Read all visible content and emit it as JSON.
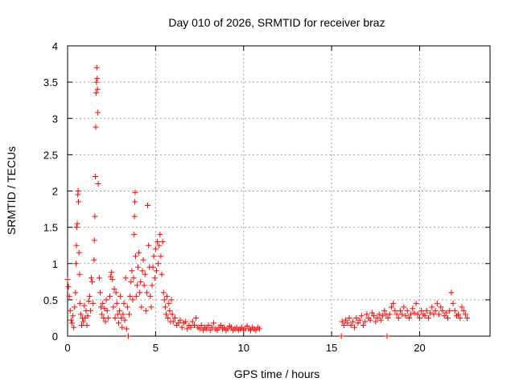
{
  "chart_data": {
    "type": "scatter",
    "title": "Day 010 of 2026, SRMTID for receiver braz",
    "xlabel": "GPS time / hours",
    "ylabel": "SRMTID / TECUs",
    "xlim": [
      0,
      24
    ],
    "ylim": [
      0,
      4
    ],
    "x_ticks": [
      0,
      5,
      10,
      15,
      20
    ],
    "x_tick_labels": [
      "0",
      "5",
      "10",
      "15",
      "20"
    ],
    "y_ticks": [
      0,
      0.5,
      1,
      1.5,
      2,
      2.5,
      3,
      3.5,
      4
    ],
    "y_tick_labels": [
      "0",
      "0.5",
      "1",
      "1.5",
      "2",
      "2.5",
      "3",
      "3.5",
      "4"
    ],
    "grid": true,
    "marker": "+",
    "series": [
      {
        "name": "SRMTID",
        "color": "#ff0000",
        "points": [
          [
            0.0,
            0.78
          ],
          [
            0.05,
            0.68
          ],
          [
            0.1,
            0.55
          ],
          [
            0.15,
            0.35
          ],
          [
            0.2,
            0.22
          ],
          [
            0.25,
            0.18
          ],
          [
            0.3,
            0.28
          ],
          [
            0.35,
            0.12
          ],
          [
            0.4,
            0.4
          ],
          [
            0.45,
            0.6
          ],
          [
            0.48,
            1.0
          ],
          [
            0.5,
            1.25
          ],
          [
            0.52,
            1.5
          ],
          [
            0.55,
            1.55
          ],
          [
            0.58,
            1.95
          ],
          [
            0.6,
            2.0
          ],
          [
            0.62,
            1.85
          ],
          [
            0.65,
            1.15
          ],
          [
            0.68,
            0.85
          ],
          [
            0.7,
            0.45
          ],
          [
            0.75,
            0.3
          ],
          [
            0.8,
            0.15
          ],
          [
            0.85,
            0.25
          ],
          [
            0.9,
            0.2
          ],
          [
            0.95,
            0.42
          ],
          [
            1.0,
            0.25
          ],
          [
            1.05,
            0.35
          ],
          [
            1.1,
            0.15
          ],
          [
            1.15,
            0.28
          ],
          [
            1.2,
            0.48
          ],
          [
            1.25,
            0.55
          ],
          [
            1.3,
            0.35
          ],
          [
            1.35,
            0.8
          ],
          [
            1.4,
            0.75
          ],
          [
            1.45,
            0.45
          ],
          [
            1.5,
            1.05
          ],
          [
            1.52,
            1.32
          ],
          [
            1.55,
            1.65
          ],
          [
            1.58,
            2.2
          ],
          [
            1.6,
            2.88
          ],
          [
            1.62,
            3.35
          ],
          [
            1.64,
            3.5
          ],
          [
            1.66,
            3.7
          ],
          [
            1.68,
            3.55
          ],
          [
            1.7,
            3.4
          ],
          [
            1.72,
            3.08
          ],
          [
            1.74,
            2.1
          ],
          [
            1.8,
            0.8
          ],
          [
            1.85,
            0.6
          ],
          [
            1.9,
            0.4
          ],
          [
            1.95,
            0.3
          ],
          [
            2.0,
            0.45
          ],
          [
            2.05,
            0.25
          ],
          [
            2.1,
            0.38
          ],
          [
            2.15,
            0.2
          ],
          [
            2.2,
            0.5
          ],
          [
            2.25,
            0.35
          ],
          [
            2.3,
            0.25
          ],
          [
            2.4,
            0.55
          ],
          [
            2.45,
            0.82
          ],
          [
            2.5,
            0.88
          ],
          [
            2.55,
            0.78
          ],
          [
            2.6,
            0.4
          ],
          [
            2.65,
            0.65
          ],
          [
            2.7,
            0.25
          ],
          [
            2.75,
            0.6
          ],
          [
            2.8,
            0.45
          ],
          [
            2.85,
            0.3
          ],
          [
            2.9,
            0.18
          ],
          [
            2.95,
            0.35
          ],
          [
            3.0,
            0.55
          ],
          [
            3.05,
            0.25
          ],
          [
            3.1,
            0.12
          ],
          [
            3.15,
            0.3
          ],
          [
            3.2,
            0.45
          ],
          [
            3.25,
            0.22
          ],
          [
            3.3,
            0.8
          ],
          [
            3.35,
            0.1
          ],
          [
            3.4,
            0.4
          ],
          [
            3.45,
            0.0
          ],
          [
            3.5,
            0.3
          ],
          [
            3.55,
            0.55
          ],
          [
            3.6,
            0.75
          ],
          [
            3.65,
            0.9
          ],
          [
            3.7,
            0.5
          ],
          [
            3.75,
            0.8
          ],
          [
            3.78,
            1.4
          ],
          [
            3.8,
            1.65
          ],
          [
            3.82,
            1.85
          ],
          [
            3.84,
            1.98
          ],
          [
            3.86,
            1.1
          ],
          [
            3.9,
            0.55
          ],
          [
            3.95,
            0.7
          ],
          [
            4.0,
            0.95
          ],
          [
            4.05,
            1.15
          ],
          [
            4.1,
            0.6
          ],
          [
            4.15,
            0.75
          ],
          [
            4.2,
            0.4
          ],
          [
            4.25,
            0.9
          ],
          [
            4.3,
            1.05
          ],
          [
            4.35,
            0.7
          ],
          [
            4.4,
            0.85
          ],
          [
            4.45,
            0.35
          ],
          [
            4.5,
            0.6
          ],
          [
            4.55,
            1.8
          ],
          [
            4.6,
            1.25
          ],
          [
            4.65,
            0.95
          ],
          [
            4.7,
            0.55
          ],
          [
            4.75,
            0.4
          ],
          [
            4.8,
            0.7
          ],
          [
            4.85,
            0.95
          ],
          [
            4.9,
            1.1
          ],
          [
            4.95,
            0.8
          ],
          [
            5.0,
            1.2
          ],
          [
            5.05,
            0.9
          ],
          [
            5.1,
            1.3
          ],
          [
            5.15,
            1.0
          ],
          [
            5.2,
            1.25
          ],
          [
            5.25,
            1.4
          ],
          [
            5.3,
            1.1
          ],
          [
            5.35,
            0.85
          ],
          [
            5.4,
            1.3
          ],
          [
            5.45,
            0.6
          ],
          [
            5.5,
            0.5
          ],
          [
            5.55,
            0.4
          ],
          [
            5.6,
            0.3
          ],
          [
            5.65,
            0.55
          ],
          [
            5.7,
            0.25
          ],
          [
            5.75,
            0.45
          ],
          [
            5.8,
            0.35
          ],
          [
            5.85,
            0.2
          ],
          [
            5.9,
            0.5
          ],
          [
            5.95,
            0.3
          ],
          [
            6.0,
            0.2
          ],
          [
            6.1,
            0.25
          ],
          [
            6.2,
            0.15
          ],
          [
            6.3,
            0.18
          ],
          [
            6.4,
            0.22
          ],
          [
            6.5,
            0.12
          ],
          [
            6.6,
            0.18
          ],
          [
            6.7,
            0.2
          ],
          [
            6.8,
            0.1
          ],
          [
            6.9,
            0.15
          ],
          [
            7.0,
            0.12
          ],
          [
            7.1,
            0.2
          ],
          [
            7.2,
            0.15
          ],
          [
            7.3,
            0.25
          ],
          [
            7.4,
            0.12
          ],
          [
            7.5,
            0.1
          ],
          [
            7.6,
            0.15
          ],
          [
            7.7,
            0.08
          ],
          [
            7.8,
            0.12
          ],
          [
            7.9,
            0.1
          ],
          [
            8.0,
            0.15
          ],
          [
            8.1,
            0.08
          ],
          [
            8.2,
            0.12
          ],
          [
            8.3,
            0.18
          ],
          [
            8.4,
            0.1
          ],
          [
            8.5,
            0.08
          ],
          [
            8.6,
            0.12
          ],
          [
            8.7,
            0.15
          ],
          [
            8.8,
            0.1
          ],
          [
            8.9,
            0.12
          ],
          [
            9.0,
            0.08
          ],
          [
            9.1,
            0.1
          ],
          [
            9.2,
            0.14
          ],
          [
            9.3,
            0.12
          ],
          [
            9.4,
            0.08
          ],
          [
            9.5,
            0.1
          ],
          [
            9.6,
            0.12
          ],
          [
            9.7,
            0.08
          ],
          [
            9.8,
            0.1
          ],
          [
            9.9,
            0.12
          ],
          [
            10.0,
            0.08
          ],
          [
            10.1,
            0.1
          ],
          [
            10.2,
            0.14
          ],
          [
            10.3,
            0.1
          ],
          [
            10.4,
            0.08
          ],
          [
            10.5,
            0.12
          ],
          [
            10.6,
            0.1
          ],
          [
            10.7,
            0.08
          ],
          [
            10.8,
            0.12
          ],
          [
            10.9,
            0.1
          ],
          [
            15.55,
            0.0
          ],
          [
            15.6,
            0.2
          ],
          [
            15.7,
            0.15
          ],
          [
            15.8,
            0.22
          ],
          [
            15.9,
            0.18
          ],
          [
            16.0,
            0.25
          ],
          [
            16.1,
            0.15
          ],
          [
            16.2,
            0.2
          ],
          [
            16.3,
            0.12
          ],
          [
            16.4,
            0.25
          ],
          [
            16.5,
            0.18
          ],
          [
            16.6,
            0.22
          ],
          [
            16.7,
            0.28
          ],
          [
            16.8,
            0.15
          ],
          [
            16.9,
            0.2
          ],
          [
            17.0,
            0.3
          ],
          [
            17.1,
            0.25
          ],
          [
            17.2,
            0.22
          ],
          [
            17.3,
            0.32
          ],
          [
            17.4,
            0.28
          ],
          [
            17.5,
            0.2
          ],
          [
            17.6,
            0.25
          ],
          [
            17.7,
            0.3
          ],
          [
            17.8,
            0.22
          ],
          [
            17.9,
            0.28
          ],
          [
            18.0,
            0.35
          ],
          [
            18.1,
            0.3
          ],
          [
            18.15,
            0.0
          ],
          [
            18.2,
            0.25
          ],
          [
            18.3,
            0.3
          ],
          [
            18.4,
            0.4
          ],
          [
            18.5,
            0.45
          ],
          [
            18.6,
            0.35
          ],
          [
            18.7,
            0.3
          ],
          [
            18.8,
            0.25
          ],
          [
            18.9,
            0.35
          ],
          [
            19.0,
            0.3
          ],
          [
            19.1,
            0.4
          ],
          [
            19.2,
            0.28
          ],
          [
            19.3,
            0.35
          ],
          [
            19.4,
            0.25
          ],
          [
            19.5,
            0.3
          ],
          [
            19.6,
            0.38
          ],
          [
            19.7,
            0.32
          ],
          [
            19.8,
            0.45
          ],
          [
            19.9,
            0.3
          ],
          [
            20.0,
            0.25
          ],
          [
            20.1,
            0.35
          ],
          [
            20.2,
            0.3
          ],
          [
            20.3,
            0.28
          ],
          [
            20.4,
            0.35
          ],
          [
            20.5,
            0.25
          ],
          [
            20.6,
            0.32
          ],
          [
            20.7,
            0.4
          ],
          [
            20.8,
            0.3
          ],
          [
            20.9,
            0.35
          ],
          [
            21.0,
            0.45
          ],
          [
            21.1,
            0.3
          ],
          [
            21.2,
            0.4
          ],
          [
            21.3,
            0.35
          ],
          [
            21.4,
            0.28
          ],
          [
            21.5,
            0.32
          ],
          [
            21.6,
            0.25
          ],
          [
            21.7,
            0.35
          ],
          [
            21.8,
            0.6
          ],
          [
            21.9,
            0.45
          ],
          [
            22.0,
            0.35
          ],
          [
            22.1,
            0.28
          ],
          [
            22.2,
            0.3
          ],
          [
            22.3,
            0.25
          ],
          [
            22.4,
            0.4
          ],
          [
            22.5,
            0.35
          ],
          [
            22.6,
            0.3
          ],
          [
            22.7,
            0.25
          ]
        ]
      }
    ]
  }
}
